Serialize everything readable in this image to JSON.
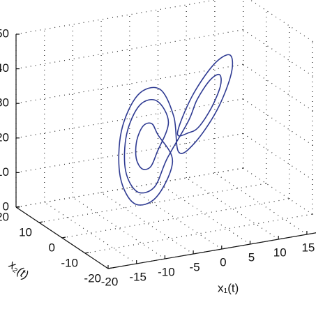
{
  "chart_data": {
    "type": "line3d",
    "x_label": "x₁(t)",
    "y_label": "x₂(t)",
    "xlim": [
      -20,
      20
    ],
    "ylim": [
      -20,
      20
    ],
    "zlim": [
      0,
      50
    ],
    "xticks": [
      -20,
      -15,
      -10,
      -5,
      0,
      5,
      10,
      15
    ],
    "yticks": [
      -20,
      -10,
      0,
      10,
      20
    ],
    "zticks": [
      0,
      10,
      20,
      30,
      40,
      50
    ],
    "grid": true,
    "series": [
      {
        "color": "#2e3a92",
        "x": [
          -4.5,
          -5.7,
          -8.5,
          -11.3,
          -12.5,
          -11.3,
          -8.5,
          -5.7,
          -0.5,
          -2.9,
          -8.5,
          -14.1,
          -16.5,
          -14.1,
          -8.5,
          -2.9,
          2.5,
          4.3,
          8.5,
          12.7,
          14.5,
          12.7,
          8.5,
          4.3,
          -1.5,
          1.4,
          8.5,
          15.6,
          18.5,
          15.6,
          8.5,
          1.4,
          1.5,
          -1.4,
          -8.5,
          -15.6,
          -18.5,
          -15.6,
          -8.5,
          -1.4
        ],
        "y": [
          -3.3,
          -3.7,
          -6.9,
          -11.0,
          -13.7,
          -13.3,
          -10.1,
          -6.0,
          1.9,
          1.0,
          -5.3,
          -13.5,
          -18.9,
          -18.0,
          -11.7,
          -3.5,
          0.7,
          1.3,
          6.1,
          12.3,
          16.3,
          15.7,
          10.9,
          4.7,
          -4.5,
          -3.5,
          4.5,
          14.9,
          21.5,
          20.5,
          12.5,
          2.1,
          4.5,
          3.5,
          -4.5,
          -14.9,
          -21.5,
          -20.5,
          -12.5,
          -2.1
        ],
        "z": [
          27,
          30.6,
          32.2,
          30.6,
          27,
          23.4,
          21.8,
          23.4,
          27,
          34.3,
          37.4,
          34.3,
          27,
          19.7,
          16.6,
          19.7,
          27,
          32.5,
          34.8,
          32.5,
          27,
          21.5,
          19.2,
          21.5,
          27,
          36.2,
          40,
          36.2,
          27,
          17.8,
          14,
          17.8,
          27,
          36.2,
          40,
          36.2,
          27,
          17.8,
          14,
          17.8
        ]
      }
    ]
  }
}
